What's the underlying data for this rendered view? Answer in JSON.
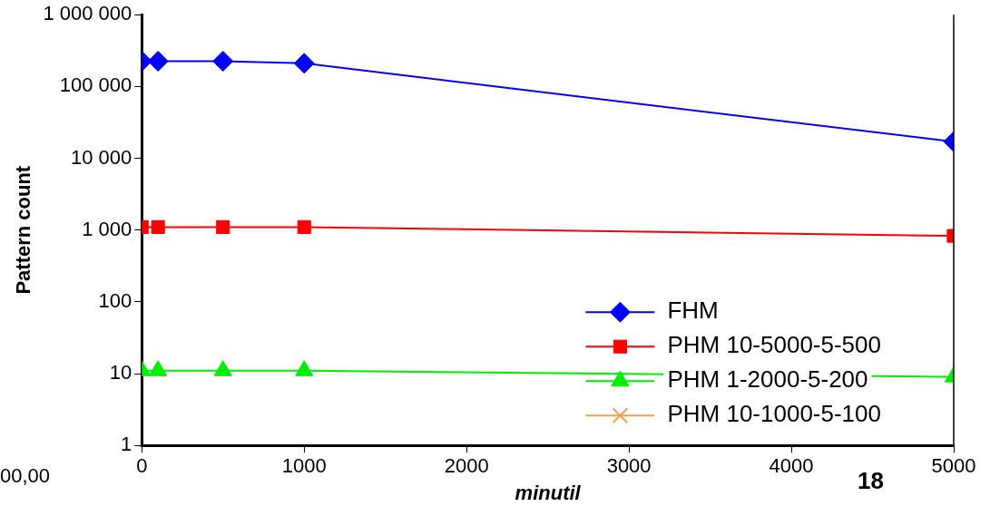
{
  "chart_data": {
    "type": "line",
    "xlabel": "minutil",
    "ylabel": "Pattern count",
    "x": [
      0,
      100,
      500,
      1000,
      5000
    ],
    "series": [
      {
        "name": "FHM",
        "color": "#0000ff",
        "marker": "diamond",
        "values": [
          225000,
          225000,
          225000,
          210000,
          17000
        ]
      },
      {
        "name": "PHM 10-5000-5-500",
        "color": "#ff0000",
        "marker": "square",
        "values": [
          1100,
          1100,
          1100,
          1100,
          830
        ]
      },
      {
        "name": "PHM 1-2000-5-200",
        "color": "#00ee00",
        "marker": "triangle",
        "values": [
          11,
          11,
          11,
          11,
          9
        ]
      },
      {
        "name": "PHM 10-1000-5-100",
        "color": "#f5a04a",
        "marker": "cross",
        "values": [
          null,
          null,
          null,
          null,
          null
        ]
      }
    ],
    "log": "y",
    "xlim": [
      0,
      5000
    ],
    "xticks": [
      0,
      1000,
      2000,
      3000,
      4000,
      5000
    ],
    "ylim": [
      1,
      1000000
    ],
    "yticks": [
      1,
      10,
      100,
      {
        "value": 1000,
        "label": "1 000"
      },
      {
        "value": 10000,
        "label": "10 000"
      },
      {
        "value": 100000,
        "label": "100 000"
      },
      {
        "value": 1000000,
        "label": "1 000 000"
      }
    ],
    "grid": false,
    "legend": "bottom right",
    "annotations": [
      "00,00",
      "18"
    ]
  }
}
